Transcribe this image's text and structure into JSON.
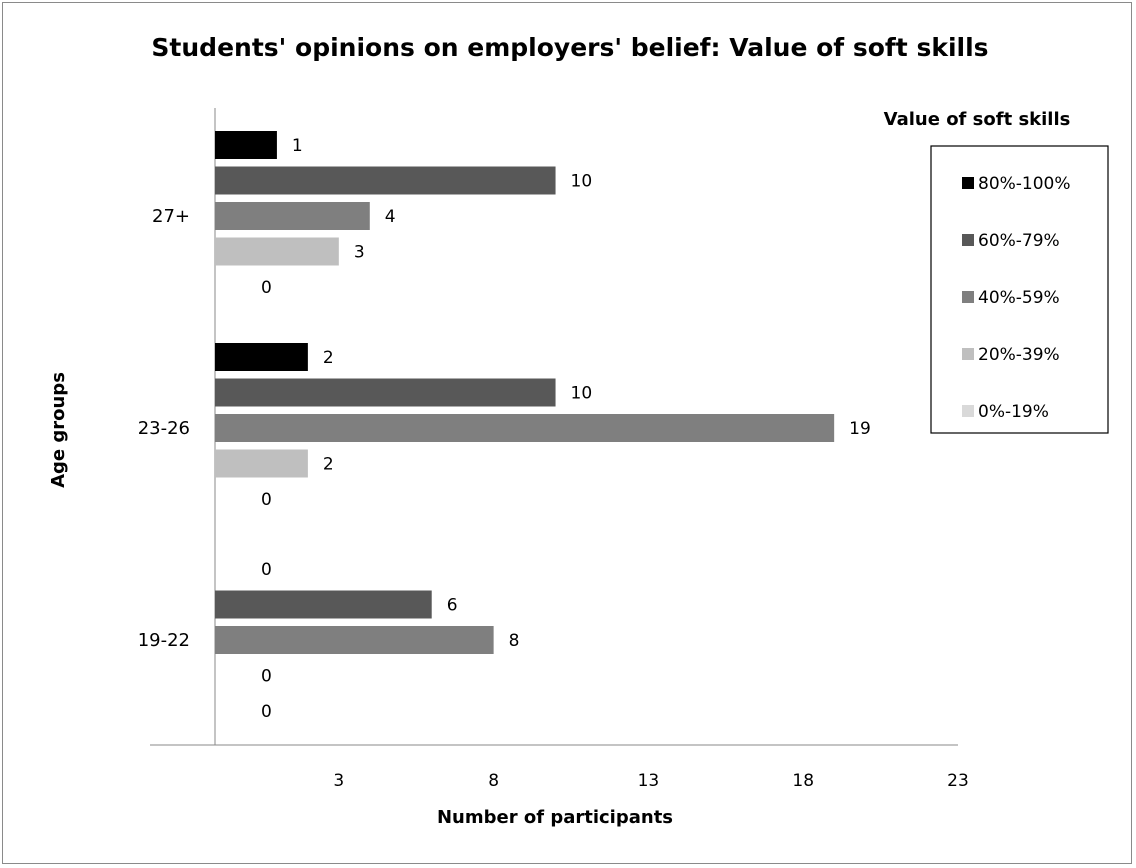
{
  "chart_data": {
    "type": "bar",
    "orientation": "horizontal",
    "title": "Students' opinions on employers' belief: Value of soft skills",
    "xlabel": "Number of participants",
    "ylabel": "Age groups",
    "categories": [
      "19-22",
      "23-26",
      "27+"
    ],
    "x_ticks": [
      "3",
      "8",
      "13",
      "18",
      "23"
    ],
    "xlim": [
      -1,
      23
    ],
    "legend_title": "Value of soft skills",
    "legend_position": "right",
    "grid": false,
    "series": [
      {
        "name": "80%-100%",
        "color": "#000000",
        "values": [
          0,
          2,
          1
        ]
      },
      {
        "name": "60%-79%",
        "color": "#585858",
        "values": [
          6,
          10,
          10
        ]
      },
      {
        "name": "40%-59%",
        "color": "#7f7f7f",
        "values": [
          8,
          19,
          4
        ]
      },
      {
        "name": "20%-39%",
        "color": "#bfbfbf",
        "values": [
          0,
          2,
          3
        ]
      },
      {
        "name": "0%-19%",
        "color": "#d9d9d9",
        "values": [
          0,
          0,
          0
        ]
      }
    ]
  }
}
